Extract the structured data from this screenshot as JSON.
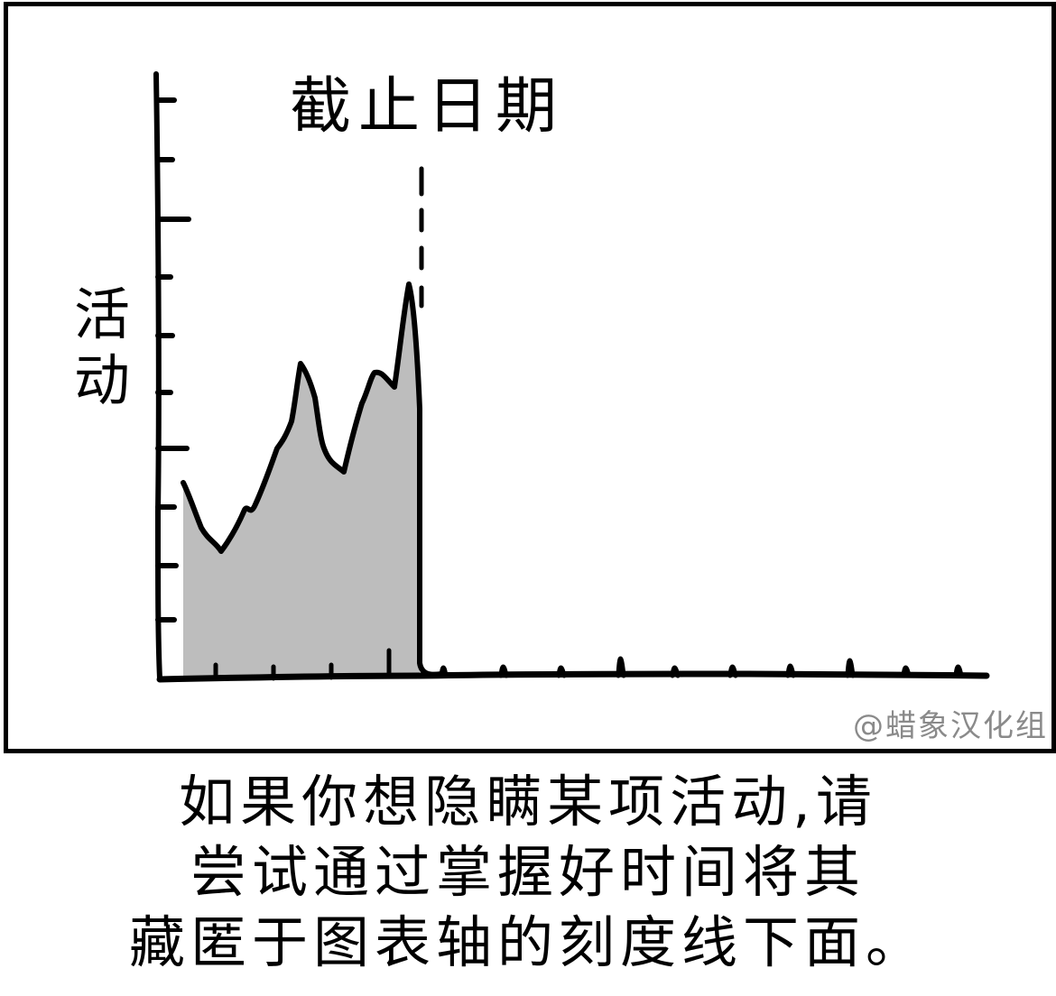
{
  "comic": {
    "deadline_label": "截止日期",
    "y_axis_label_chars": [
      "活",
      "动"
    ],
    "credit": "@蜡象汉化组",
    "caption_lines": [
      "如果你想隐瞒某项活动,请",
      "尝试通过掌握好时间将其",
      "藏匿于图表轴的刻度线下面。"
    ]
  },
  "colors": {
    "ink": "#000000",
    "fill": "#bdbdbd",
    "credit": "#8a8a8a",
    "background": "#ffffff"
  }
}
